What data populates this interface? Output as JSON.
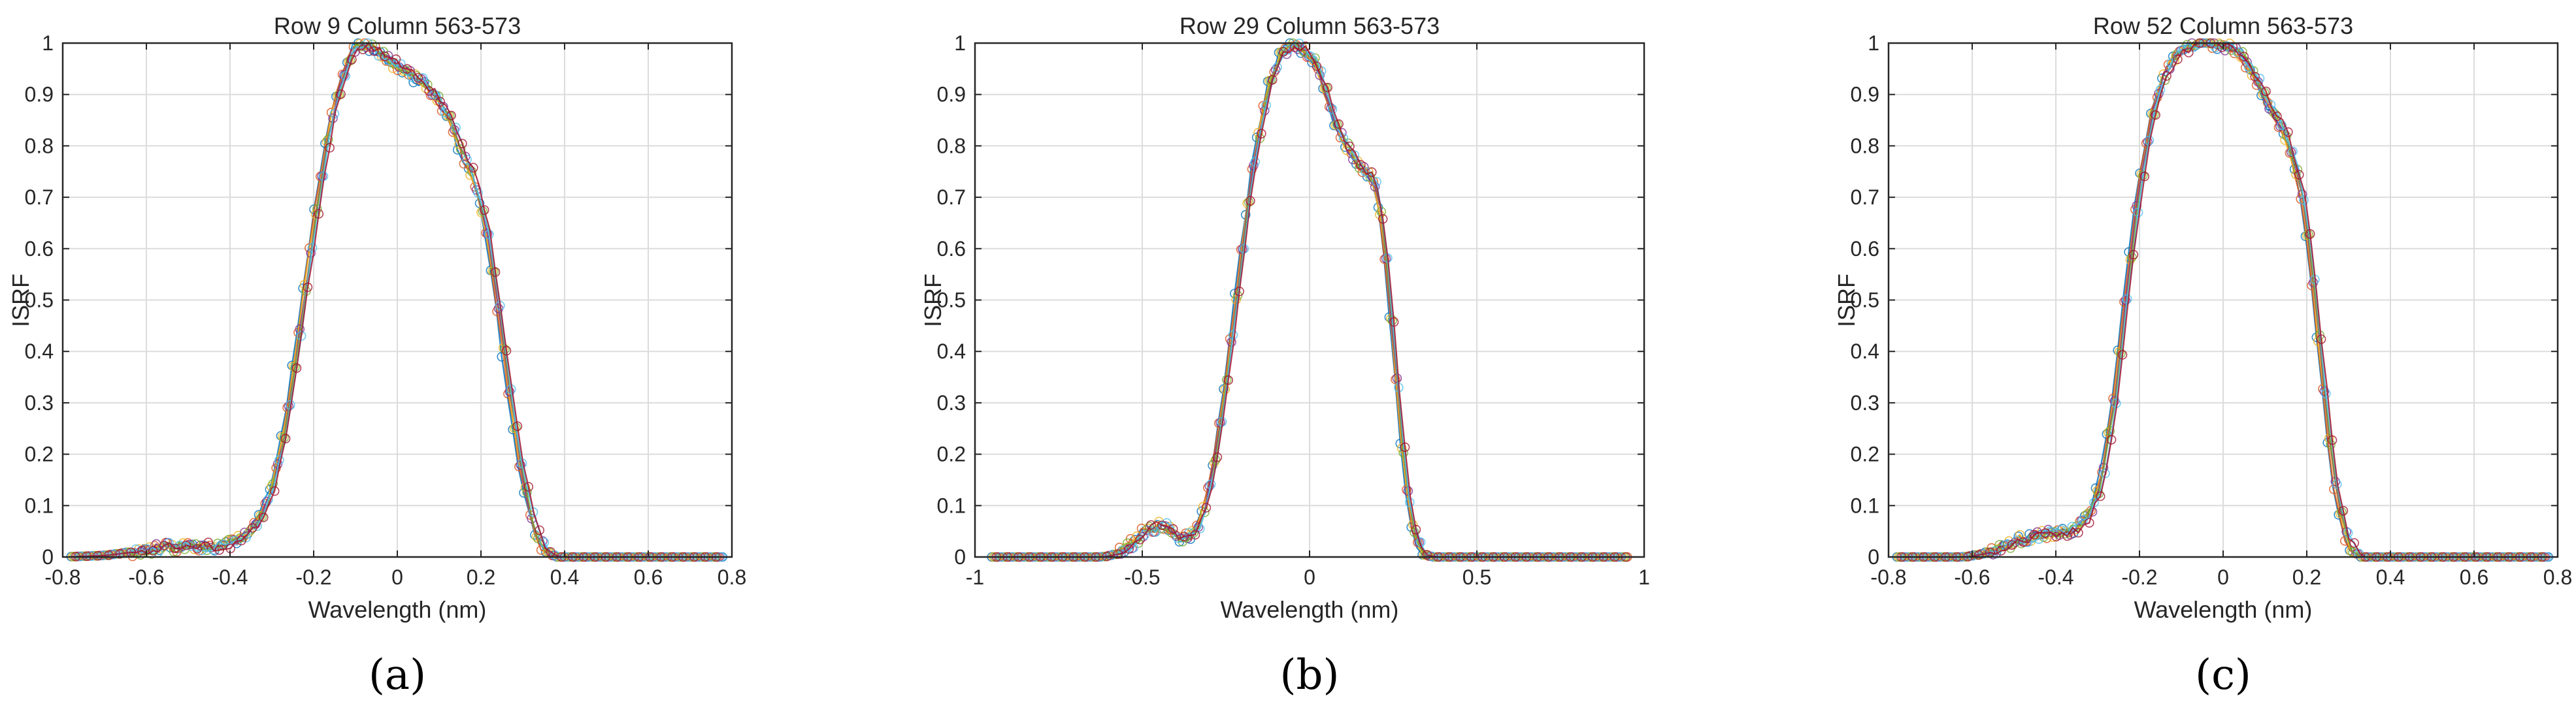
{
  "panel_letters": [
    "(a)",
    "(b)",
    "(c)"
  ],
  "colors": [
    "#0072BD",
    "#D95319",
    "#EDB120",
    "#7E2F8E",
    "#77AC30",
    "#4DBEEE",
    "#A2142F"
  ],
  "chart_data": [
    {
      "type": "line",
      "title": "Row 9 Column 563-573",
      "xlabel": "Wavelength (nm)",
      "ylabel": "ISRF",
      "xlim": [
        -0.8,
        0.8
      ],
      "ylim": [
        0,
        1
      ],
      "xticks": [
        -0.8,
        -0.6,
        -0.4,
        -0.2,
        0,
        0.2,
        0.4,
        0.6,
        0.8
      ],
      "xtick_labels": [
        "-0.8",
        "-0.6",
        "-0.4",
        "-0.2",
        "0",
        "0.2",
        "0.4",
        "0.6",
        "0.8"
      ],
      "yticks": [
        0,
        0.1,
        0.2,
        0.3,
        0.4,
        0.5,
        0.6,
        0.7,
        0.8,
        0.9,
        1
      ],
      "ytick_labels": [
        "0",
        "0.1",
        "0.2",
        "0.3",
        "0.4",
        "0.5",
        "0.6",
        "0.7",
        "0.8",
        "0.9",
        "1"
      ],
      "grid": true,
      "markers": "circle",
      "x_range": [
        -0.78,
        0.78
      ],
      "series_count": 7,
      "profile": [
        [
          -0.8,
          0.0
        ],
        [
          -0.7,
          0.003
        ],
        [
          -0.65,
          0.008
        ],
        [
          -0.6,
          0.015
        ],
        [
          -0.55,
          0.019
        ],
        [
          -0.5,
          0.02
        ],
        [
          -0.45,
          0.02
        ],
        [
          -0.4,
          0.025
        ],
        [
          -0.36,
          0.04
        ],
        [
          -0.33,
          0.07
        ],
        [
          -0.3,
          0.13
        ],
        [
          -0.27,
          0.24
        ],
        [
          -0.24,
          0.4
        ],
        [
          -0.21,
          0.58
        ],
        [
          -0.18,
          0.75
        ],
        [
          -0.15,
          0.88
        ],
        [
          -0.12,
          0.96
        ],
        [
          -0.1,
          0.99
        ],
        [
          -0.08,
          1.0
        ],
        [
          -0.05,
          0.985
        ],
        [
          -0.02,
          0.965
        ],
        [
          0.0,
          0.955
        ],
        [
          0.03,
          0.94
        ],
        [
          0.06,
          0.925
        ],
        [
          0.1,
          0.89
        ],
        [
          0.14,
          0.82
        ],
        [
          0.18,
          0.74
        ],
        [
          0.21,
          0.66
        ],
        [
          0.24,
          0.5
        ],
        [
          0.26,
          0.37
        ],
        [
          0.28,
          0.26
        ],
        [
          0.3,
          0.16
        ],
        [
          0.32,
          0.08
        ],
        [
          0.34,
          0.03
        ],
        [
          0.36,
          0.01
        ],
        [
          0.38,
          0.0
        ],
        [
          0.42,
          0.0
        ],
        [
          0.8,
          0.0
        ]
      ]
    },
    {
      "type": "line",
      "title": "Row 29 Column 563-573",
      "xlabel": "Wavelength (nm)",
      "ylabel": "ISRF",
      "xlim": [
        -1,
        1
      ],
      "ylim": [
        0,
        1
      ],
      "xticks": [
        -1,
        -0.5,
        0,
        0.5,
        1
      ],
      "xtick_labels": [
        "-1",
        "-0.5",
        "0",
        "0.5",
        "1"
      ],
      "yticks": [
        0,
        0.1,
        0.2,
        0.3,
        0.4,
        0.5,
        0.6,
        0.7,
        0.8,
        0.9,
        1
      ],
      "ytick_labels": [
        "0",
        "0.1",
        "0.2",
        "0.3",
        "0.4",
        "0.5",
        "0.6",
        "0.7",
        "0.8",
        "0.9",
        "1"
      ],
      "grid": true,
      "markers": "circle",
      "x_range": [
        -0.95,
        0.95
      ],
      "series_count": 7,
      "profile": [
        [
          -1.0,
          0.0
        ],
        [
          -0.62,
          0.0
        ],
        [
          -0.58,
          0.005
        ],
        [
          -0.54,
          0.02
        ],
        [
          -0.5,
          0.045
        ],
        [
          -0.46,
          0.06
        ],
        [
          -0.44,
          0.062
        ],
        [
          -0.41,
          0.05
        ],
        [
          -0.38,
          0.035
        ],
        [
          -0.35,
          0.04
        ],
        [
          -0.32,
          0.08
        ],
        [
          -0.29,
          0.16
        ],
        [
          -0.26,
          0.28
        ],
        [
          -0.23,
          0.44
        ],
        [
          -0.2,
          0.6
        ],
        [
          -0.17,
          0.75
        ],
        [
          -0.14,
          0.86
        ],
        [
          -0.11,
          0.94
        ],
        [
          -0.08,
          0.98
        ],
        [
          -0.05,
          1.0
        ],
        [
          -0.02,
          0.99
        ],
        [
          0.02,
          0.96
        ],
        [
          0.05,
          0.9
        ],
        [
          0.08,
          0.84
        ],
        [
          0.11,
          0.8
        ],
        [
          0.14,
          0.77
        ],
        [
          0.17,
          0.75
        ],
        [
          0.2,
          0.72
        ],
        [
          0.22,
          0.64
        ],
        [
          0.24,
          0.5
        ],
        [
          0.26,
          0.35
        ],
        [
          0.28,
          0.2
        ],
        [
          0.3,
          0.09
        ],
        [
          0.32,
          0.03
        ],
        [
          0.34,
          0.005
        ],
        [
          0.37,
          0.0
        ],
        [
          1.0,
          0.0
        ]
      ]
    },
    {
      "type": "line",
      "title": "Row 52 Column 563-573",
      "xlabel": "Wavelength (nm)",
      "ylabel": "ISRF",
      "xlim": [
        -0.8,
        0.8
      ],
      "ylim": [
        0,
        1
      ],
      "xticks": [
        -0.8,
        -0.6,
        -0.4,
        -0.2,
        0,
        0.2,
        0.4,
        0.6,
        0.8
      ],
      "xtick_labels": [
        "-0.8",
        "-0.6",
        "-0.4",
        "-0.2",
        "0",
        "0.2",
        "0.4",
        "0.6",
        "0.8"
      ],
      "yticks": [
        0,
        0.1,
        0.2,
        0.3,
        0.4,
        0.5,
        0.6,
        0.7,
        0.8,
        0.9,
        1
      ],
      "ytick_labels": [
        "0",
        "0.1",
        "0.2",
        "0.3",
        "0.4",
        "0.5",
        "0.6",
        "0.7",
        "0.8",
        "0.9",
        "1"
      ],
      "grid": true,
      "markers": "circle",
      "x_range": [
        -0.78,
        0.78
      ],
      "series_count": 7,
      "profile": [
        [
          -0.8,
          0.0
        ],
        [
          -0.62,
          0.0
        ],
        [
          -0.58,
          0.005
        ],
        [
          -0.54,
          0.015
        ],
        [
          -0.5,
          0.03
        ],
        [
          -0.46,
          0.04
        ],
        [
          -0.42,
          0.045
        ],
        [
          -0.38,
          0.048
        ],
        [
          -0.35,
          0.055
        ],
        [
          -0.32,
          0.08
        ],
        [
          -0.29,
          0.15
        ],
        [
          -0.26,
          0.3
        ],
        [
          -0.23,
          0.52
        ],
        [
          -0.2,
          0.72
        ],
        [
          -0.17,
          0.86
        ],
        [
          -0.14,
          0.94
        ],
        [
          -0.11,
          0.98
        ],
        [
          -0.08,
          0.995
        ],
        [
          -0.05,
          1.0
        ],
        [
          -0.02,
          1.0
        ],
        [
          0.02,
          0.99
        ],
        [
          0.05,
          0.97
        ],
        [
          0.08,
          0.93
        ],
        [
          0.11,
          0.88
        ],
        [
          0.14,
          0.84
        ],
        [
          0.17,
          0.77
        ],
        [
          0.19,
          0.7
        ],
        [
          0.21,
          0.58
        ],
        [
          0.23,
          0.42
        ],
        [
          0.25,
          0.26
        ],
        [
          0.27,
          0.13
        ],
        [
          0.29,
          0.05
        ],
        [
          0.31,
          0.015
        ],
        [
          0.33,
          0.0
        ],
        [
          0.8,
          0.0
        ]
      ]
    }
  ]
}
